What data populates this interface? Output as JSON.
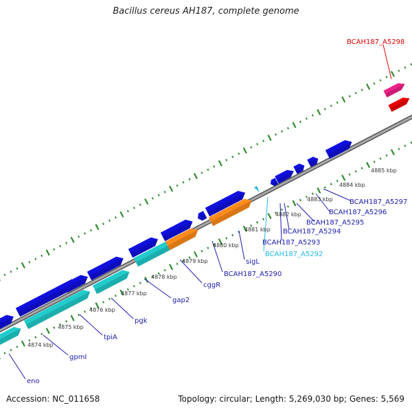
{
  "title": "Bacillus cereus AH187, complete genome",
  "footer": {
    "accession": "Accession: NC_011658",
    "summary": "Topology: circular; Length: 5,269,030 bp; Genes: 5,569"
  },
  "colors": {
    "blue": "#1010dd",
    "teal": "#22cccc",
    "orange": "#ff8c1a",
    "pink": "#ee2288",
    "red": "#ee0000",
    "light_blue": "#22b8f0",
    "backbone": "#888888",
    "tick_green": "#2d8a2d",
    "label_blue": "#1a1aaa",
    "label_red": "#dd0000",
    "label_light": "#22b8e8"
  },
  "diagram": {
    "type": "linear genome map (zoomed arc)",
    "kbp_scale": [
      "4874 kbp",
      "4875 kbp",
      "4876 kbp",
      "4877 kbp",
      "4878 kbp",
      "4879 kbp",
      "4880 kbp",
      "4881 kbp",
      "4882 kbp",
      "4883 kbp",
      "4884 kbp",
      "4885 kbp"
    ],
    "gene_labels": [
      {
        "text": "eno",
        "color": "label_blue"
      },
      {
        "text": "gpmI",
        "color": "label_blue"
      },
      {
        "text": "tpiA",
        "color": "label_blue"
      },
      {
        "text": "pgk",
        "color": "label_blue"
      },
      {
        "text": "gap2",
        "color": "label_blue"
      },
      {
        "text": "cggR",
        "color": "label_blue"
      },
      {
        "text": "BCAH187_A5290",
        "color": "label_blue"
      },
      {
        "text": "sigL",
        "color": "label_blue"
      },
      {
        "text": "BCAH187_A5292",
        "color": "label_light"
      },
      {
        "text": "BCAH187_A5293",
        "color": "label_blue"
      },
      {
        "text": "BCAH187_A5294",
        "color": "label_blue"
      },
      {
        "text": "BCAH187_A5295",
        "color": "label_blue"
      },
      {
        "text": "BCAH187_A5296",
        "color": "label_blue"
      },
      {
        "text": "BCAH187_A5297",
        "color": "label_blue"
      },
      {
        "text": "BCAH187_A5298",
        "color": "label_red"
      }
    ]
  }
}
